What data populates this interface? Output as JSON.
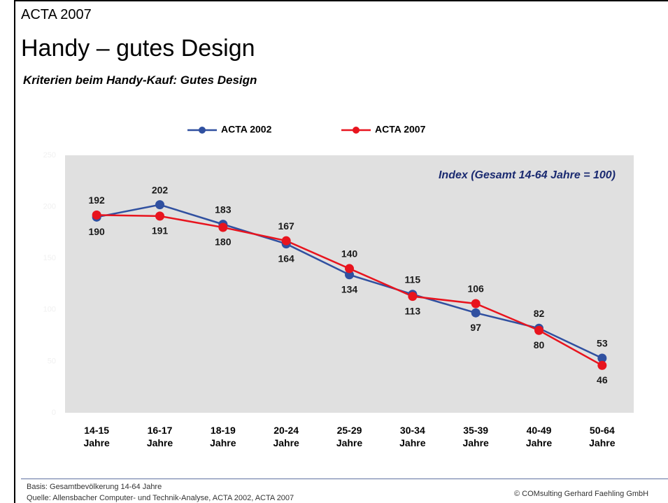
{
  "chart_data": {
    "type": "line",
    "kicker": "ACTA 2007",
    "title": "Handy – gutes Design",
    "subtitle": "Kriterien beim Handy-Kauf: Gutes Design",
    "annotation": "Index (Gesamt 14-64 Jahre = 100)",
    "categories": [
      "14-15 Jahre",
      "16-17 Jahre",
      "18-19 Jahre",
      "20-24 Jahre",
      "25-29 Jahre",
      "30-34 Jahre",
      "35-39 Jahre",
      "40-49 Jahre",
      "50-64 Jahre"
    ],
    "series": [
      {
        "name": "ACTA 2002",
        "color": "#3050a0",
        "values": [
          190,
          202,
          183,
          164,
          134,
          115,
          97,
          82,
          53
        ]
      },
      {
        "name": "ACTA 2007",
        "color": "#e8141e",
        "values": [
          192,
          191,
          180,
          167,
          140,
          113,
          106,
          80,
          46
        ]
      }
    ],
    "ylim": [
      0,
      250
    ],
    "yticks": [
      0,
      50,
      100,
      150,
      200,
      250
    ],
    "plot_color": "#e0e0e0",
    "footer": {
      "basis": "Basis: Gesamtbevölkerung 14-64 Jahre",
      "source": "Quelle: Allensbacher Computer- und Technik-Analyse, ACTA 2002, ACTA 2007",
      "copyright": "© COMsulting Gerhard Faehling GmbH"
    }
  }
}
